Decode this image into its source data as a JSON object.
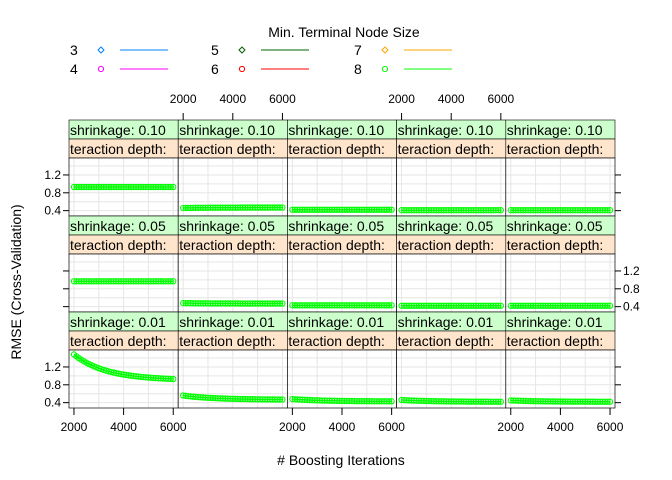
{
  "chart_data": {
    "type": "line",
    "layout": "trellis",
    "legend": {
      "title": "Min. Terminal Node Size",
      "placement": "top",
      "entries": [
        {
          "label": "3",
          "color": "#0080ff",
          "marker": "diamond"
        },
        {
          "label": "4",
          "color": "#ff00ff",
          "marker": "circle"
        },
        {
          "label": "5",
          "color": "#006400",
          "marker": "diamond"
        },
        {
          "label": "6",
          "color": "#ff0000",
          "marker": "circle"
        },
        {
          "label": "7",
          "color": "#ffa500",
          "marker": "diamond"
        },
        {
          "label": "8",
          "color": "#00ff00",
          "marker": "circle"
        }
      ]
    },
    "xlabel": "# Boosting Iterations",
    "ylabel": "RMSE (Cross-Validation)",
    "xlim": [
      1800,
      6200
    ],
    "ylim": [
      0.28,
      1.58
    ],
    "x_ticks": [
      "2000",
      "4000",
      "6000"
    ],
    "y_ticks": [
      "0.4",
      "0.8",
      "1.2"
    ],
    "grid": true,
    "strip_colors": {
      "shrinkage": "#ccffcc",
      "interaction_depth": "#ffe5cc"
    },
    "panels": [
      {
        "shrinkage": "shrinkage: 0.10",
        "depth": "teraction depth:",
        "start": 0.93,
        "end": 0.93
      },
      {
        "shrinkage": "shrinkage: 0.10",
        "depth": "teraction depth:",
        "start": 0.46,
        "end": 0.47
      },
      {
        "shrinkage": "shrinkage: 0.10",
        "depth": "teraction depth:",
        "start": 0.42,
        "end": 0.42
      },
      {
        "shrinkage": "shrinkage: 0.10",
        "depth": "teraction depth:",
        "start": 0.41,
        "end": 0.41
      },
      {
        "shrinkage": "shrinkage: 0.10",
        "depth": "teraction depth:",
        "start": 0.41,
        "end": 0.41
      },
      {
        "shrinkage": "shrinkage: 0.05",
        "depth": "teraction depth:",
        "start": 0.97,
        "end": 0.97
      },
      {
        "shrinkage": "shrinkage: 0.05",
        "depth": "teraction depth:",
        "start": 0.48,
        "end": 0.47
      },
      {
        "shrinkage": "shrinkage: 0.05",
        "depth": "teraction depth:",
        "start": 0.43,
        "end": 0.43
      },
      {
        "shrinkage": "shrinkage: 0.05",
        "depth": "teraction depth:",
        "start": 0.42,
        "end": 0.42
      },
      {
        "shrinkage": "shrinkage: 0.05",
        "depth": "teraction depth:",
        "start": 0.42,
        "end": 0.42
      },
      {
        "shrinkage": "shrinkage: 0.01",
        "depth": "teraction depth:",
        "start": 1.48,
        "end": 0.93
      },
      {
        "shrinkage": "shrinkage: 0.01",
        "depth": "teraction depth:",
        "start": 0.56,
        "end": 0.47
      },
      {
        "shrinkage": "shrinkage: 0.01",
        "depth": "teraction depth:",
        "start": 0.48,
        "end": 0.43
      },
      {
        "shrinkage": "shrinkage: 0.01",
        "depth": "teraction depth:",
        "start": 0.46,
        "end": 0.42
      },
      {
        "shrinkage": "shrinkage: 0.01",
        "depth": "teraction depth:",
        "start": 0.45,
        "end": 0.42
      }
    ]
  }
}
